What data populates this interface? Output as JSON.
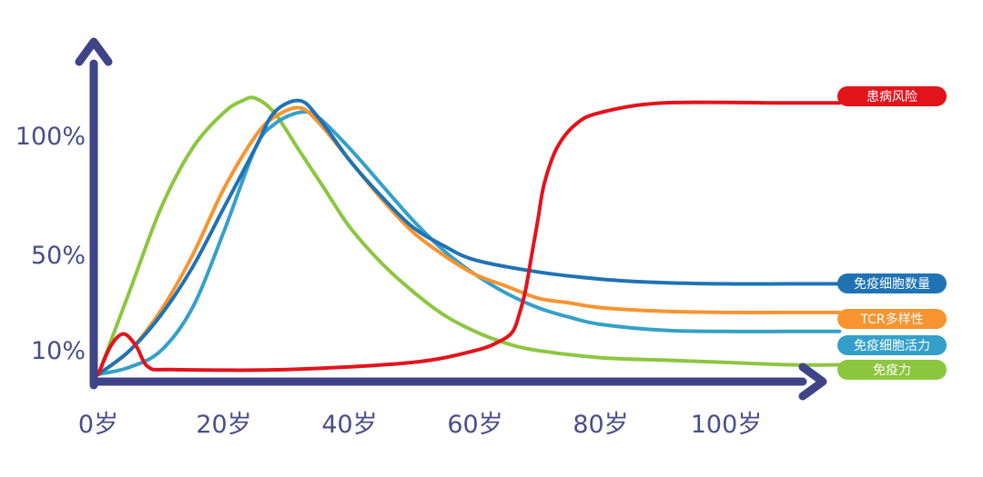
{
  "chart_data": {
    "type": "line",
    "x_unit": "岁",
    "x_ticks": [
      {
        "value": 0,
        "label": "0岁"
      },
      {
        "value": 20,
        "label": "20岁"
      },
      {
        "value": 40,
        "label": "40岁"
      },
      {
        "value": 60,
        "label": "60岁"
      },
      {
        "value": 80,
        "label": "80岁"
      },
      {
        "value": 100,
        "label": "100岁"
      }
    ],
    "y_ticks": [
      {
        "value": 10,
        "label": "10%"
      },
      {
        "value": 50,
        "label": "50%"
      },
      {
        "value": 100,
        "label": "100%"
      }
    ],
    "axis_color": "#3f4388",
    "grid": false,
    "legend_placement": "right, labels at line ends",
    "series": [
      {
        "name": "患病风险",
        "color": "#e3131b",
        "points": [
          [
            0,
            0
          ],
          [
            2,
            12
          ],
          [
            4,
            17
          ],
          [
            6,
            12
          ],
          [
            8,
            3
          ],
          [
            12,
            2
          ],
          [
            30,
            2
          ],
          [
            50,
            5
          ],
          [
            60,
            10
          ],
          [
            64,
            14
          ],
          [
            66,
            18
          ],
          [
            67,
            25
          ],
          [
            68,
            35
          ],
          [
            69,
            50
          ],
          [
            70,
            65
          ],
          [
            71,
            80
          ],
          [
            73,
            95
          ],
          [
            76,
            105
          ],
          [
            80,
            110
          ],
          [
            90,
            114
          ],
          [
            110,
            114
          ],
          [
            118,
            114
          ]
        ]
      },
      {
        "name": "免疫细胞数量",
        "color": "#1f73b4",
        "points": [
          [
            0,
            0
          ],
          [
            5,
            10
          ],
          [
            10,
            25
          ],
          [
            15,
            45
          ],
          [
            20,
            70
          ],
          [
            25,
            95
          ],
          [
            28,
            110
          ],
          [
            32,
            115
          ],
          [
            35,
            108
          ],
          [
            40,
            90
          ],
          [
            45,
            75
          ],
          [
            50,
            62
          ],
          [
            55,
            54
          ],
          [
            60,
            48
          ],
          [
            70,
            43
          ],
          [
            80,
            40
          ],
          [
            90,
            38.5
          ],
          [
            100,
            38
          ],
          [
            110,
            38
          ],
          [
            118,
            38
          ]
        ]
      },
      {
        "name": "TCR多样性",
        "color": "#f7942f",
        "points": [
          [
            0,
            0
          ],
          [
            5,
            10
          ],
          [
            10,
            27
          ],
          [
            15,
            50
          ],
          [
            20,
            78
          ],
          [
            25,
            100
          ],
          [
            28,
            108
          ],
          [
            32,
            112
          ],
          [
            35,
            106
          ],
          [
            40,
            90
          ],
          [
            45,
            74
          ],
          [
            50,
            60
          ],
          [
            55,
            50
          ],
          [
            60,
            42
          ],
          [
            65,
            37
          ],
          [
            70,
            32
          ],
          [
            75,
            30
          ],
          [
            80,
            28
          ],
          [
            90,
            26.5
          ],
          [
            100,
            26
          ],
          [
            110,
            26
          ],
          [
            118,
            26
          ]
        ]
      },
      {
        "name": "免疫细胞活力",
        "color": "#34a0c9",
        "points": [
          [
            0,
            0
          ],
          [
            5,
            3
          ],
          [
            10,
            10
          ],
          [
            15,
            28
          ],
          [
            20,
            60
          ],
          [
            25,
            95
          ],
          [
            28,
            105
          ],
          [
            32,
            110
          ],
          [
            35,
            108
          ],
          [
            40,
            95
          ],
          [
            45,
            80
          ],
          [
            50,
            65
          ],
          [
            55,
            52
          ],
          [
            60,
            42
          ],
          [
            65,
            34
          ],
          [
            70,
            28
          ],
          [
            75,
            24
          ],
          [
            80,
            21
          ],
          [
            90,
            18.5
          ],
          [
            100,
            18
          ],
          [
            110,
            18
          ],
          [
            118,
            18
          ]
        ]
      },
      {
        "name": "免疫力",
        "color": "#8cc63f",
        "points": [
          [
            0,
            0
          ],
          [
            5,
            35
          ],
          [
            10,
            70
          ],
          [
            15,
            95
          ],
          [
            20,
            110
          ],
          [
            23,
            115
          ],
          [
            25,
            116
          ],
          [
            28,
            110
          ],
          [
            32,
            94
          ],
          [
            36,
            78
          ],
          [
            40,
            62
          ],
          [
            45,
            47
          ],
          [
            50,
            35
          ],
          [
            55,
            25
          ],
          [
            60,
            18
          ],
          [
            65,
            13
          ],
          [
            70,
            10
          ],
          [
            80,
            7
          ],
          [
            90,
            6
          ],
          [
            100,
            5
          ],
          [
            110,
            4
          ],
          [
            118,
            4
          ]
        ]
      }
    ]
  },
  "labels": {
    "risk": "患病风险",
    "cell_count": "免疫细胞数量",
    "tcr": "TCR多样性",
    "cell_vitality": "免疫细胞活力",
    "immunity": "免疫力"
  }
}
